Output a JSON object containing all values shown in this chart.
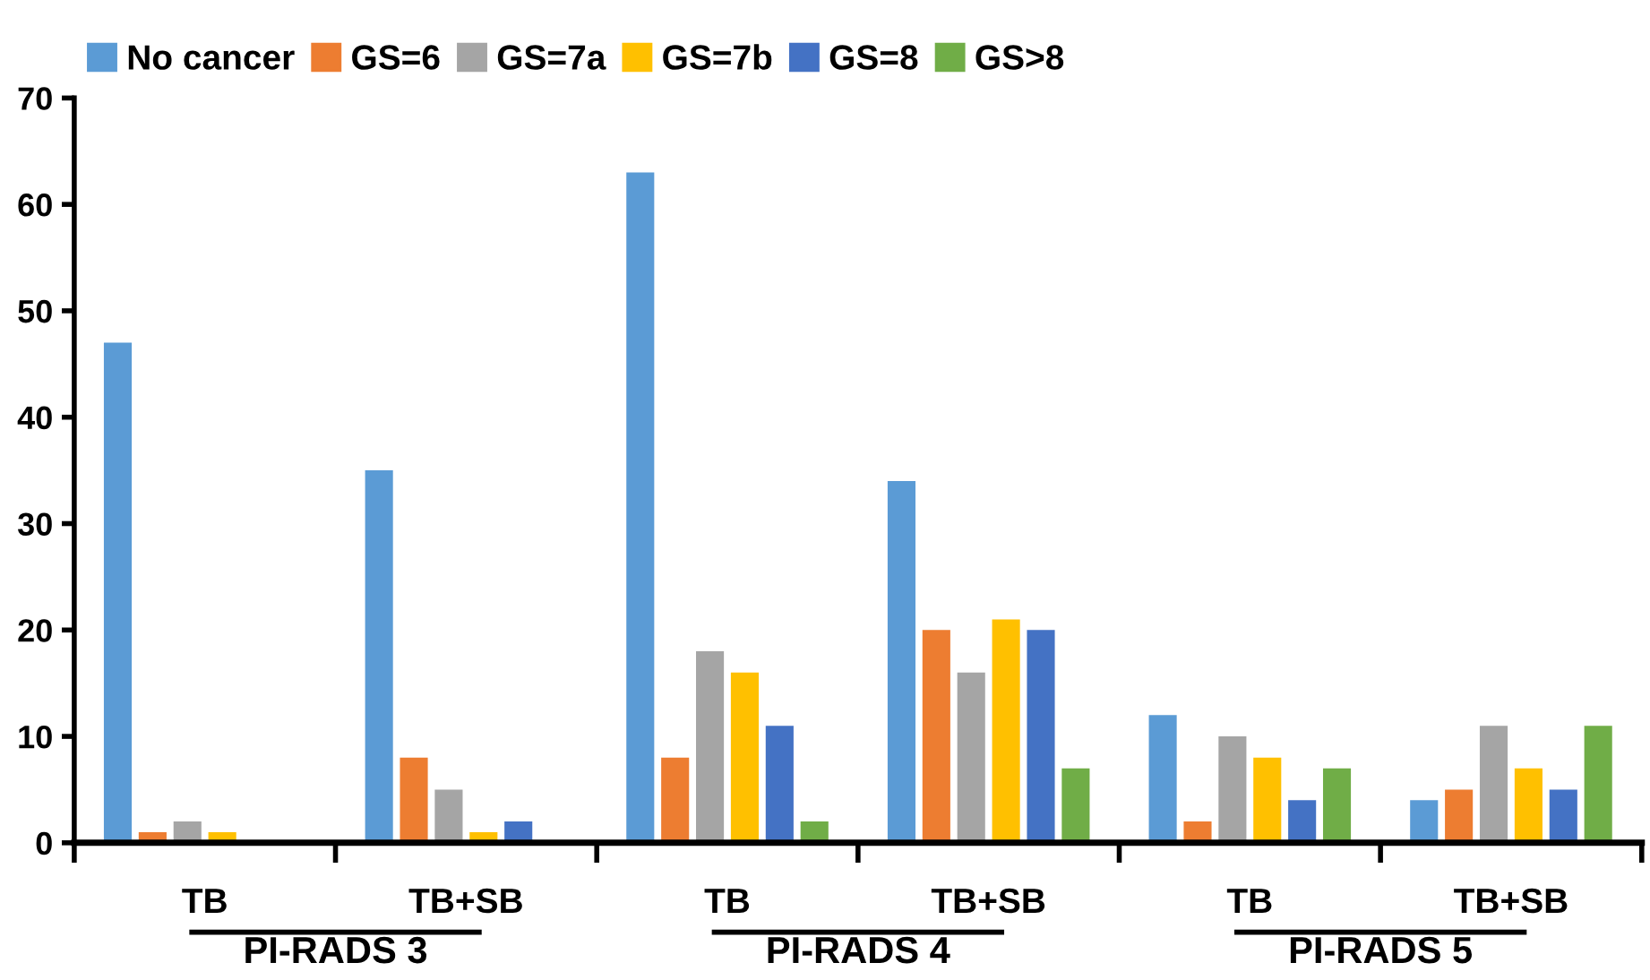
{
  "chart_data": {
    "type": "bar",
    "categories": [
      "TB",
      "TB+SB",
      "TB",
      "TB+SB",
      "TB",
      "TB+SB"
    ],
    "series": [
      {
        "name": "No cancer",
        "color": "#5b9bd5",
        "values": [
          47,
          35,
          63,
          34,
          12,
          4
        ]
      },
      {
        "name": "GS=6",
        "color": "#ed7d31",
        "values": [
          1,
          8,
          8,
          20,
          2,
          5
        ]
      },
      {
        "name": "GS=7a",
        "color": "#a5a5a5",
        "values": [
          2,
          5,
          18,
          16,
          10,
          11
        ]
      },
      {
        "name": "GS=7b",
        "color": "#ffc000",
        "values": [
          1,
          1,
          16,
          21,
          8,
          7
        ]
      },
      {
        "name": "GS=8",
        "color": "#4472c4",
        "values": [
          0,
          2,
          11,
          20,
          4,
          5
        ]
      },
      {
        "name": "GS>8",
        "color": "#70ad47",
        "values": [
          0,
          0,
          2,
          7,
          7,
          11
        ]
      }
    ],
    "annotations": [
      "PI-RADS 3",
      "PI-RADS 4",
      "PI-RADS 5"
    ],
    "ylim": [
      0,
      70
    ],
    "yticks": [
      0,
      10,
      20,
      30,
      40,
      50,
      60,
      70
    ],
    "grid": false,
    "legend": "top left"
  }
}
